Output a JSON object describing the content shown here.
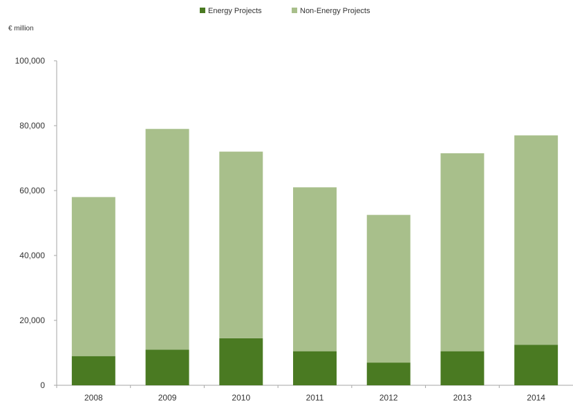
{
  "chart_data": {
    "type": "bar",
    "stacked": true,
    "title": "",
    "xlabel": "",
    "ylabel": "€ million",
    "categories": [
      "2008",
      "2009",
      "2010",
      "2011",
      "2012",
      "2013",
      "2014"
    ],
    "series": [
      {
        "name": "Energy Projects",
        "color": "#4a7a22",
        "values": [
          9000,
          11000,
          14500,
          10500,
          7000,
          10500,
          12500
        ]
      },
      {
        "name": "Non-Energy Projects",
        "color": "#a8bf8b",
        "values": [
          49000,
          68000,
          57500,
          50500,
          45500,
          61000,
          64500
        ]
      }
    ],
    "ylim": [
      0,
      100000
    ],
    "yticks": [
      "0",
      "20,000",
      "40,000",
      "60,000",
      "80,000",
      "100,000"
    ],
    "ytick_values": [
      0,
      20000,
      40000,
      60000,
      80000,
      100000
    ],
    "grid": false,
    "legend_position": "top-center"
  }
}
